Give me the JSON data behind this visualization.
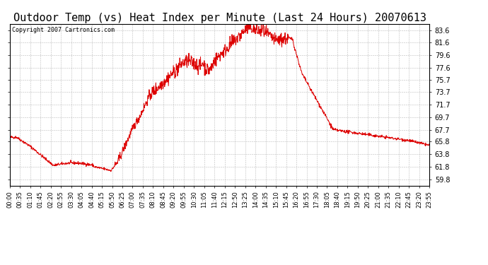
{
  "title": "Outdoor Temp (vs) Heat Index per Minute (Last 24 Hours) 20070613",
  "copyright": "Copyright 2007 Cartronics.com",
  "line_color": "#dd0000",
  "background_color": "#ffffff",
  "grid_color": "#bbbbbb",
  "yticks": [
    59.8,
    61.8,
    63.8,
    65.8,
    67.7,
    69.7,
    71.7,
    73.7,
    75.7,
    77.6,
    79.6,
    81.6,
    83.6
  ],
  "ymin": 58.8,
  "ymax": 84.6,
  "xtick_labels": [
    "00:00",
    "00:35",
    "01:10",
    "01:45",
    "02:20",
    "02:55",
    "03:30",
    "04:05",
    "04:40",
    "05:15",
    "05:50",
    "06:25",
    "07:00",
    "07:35",
    "08:10",
    "08:45",
    "09:20",
    "09:55",
    "10:30",
    "11:05",
    "11:40",
    "12:15",
    "12:50",
    "13:25",
    "14:00",
    "14:35",
    "15:10",
    "15:45",
    "16:20",
    "16:55",
    "17:30",
    "18:05",
    "18:40",
    "19:15",
    "19:50",
    "20:25",
    "21:00",
    "21:35",
    "22:10",
    "22:45",
    "23:20",
    "23:55"
  ],
  "title_fontsize": 11,
  "copyright_fontsize": 6,
  "tick_fontsize": 6,
  "ytick_fontsize": 7
}
